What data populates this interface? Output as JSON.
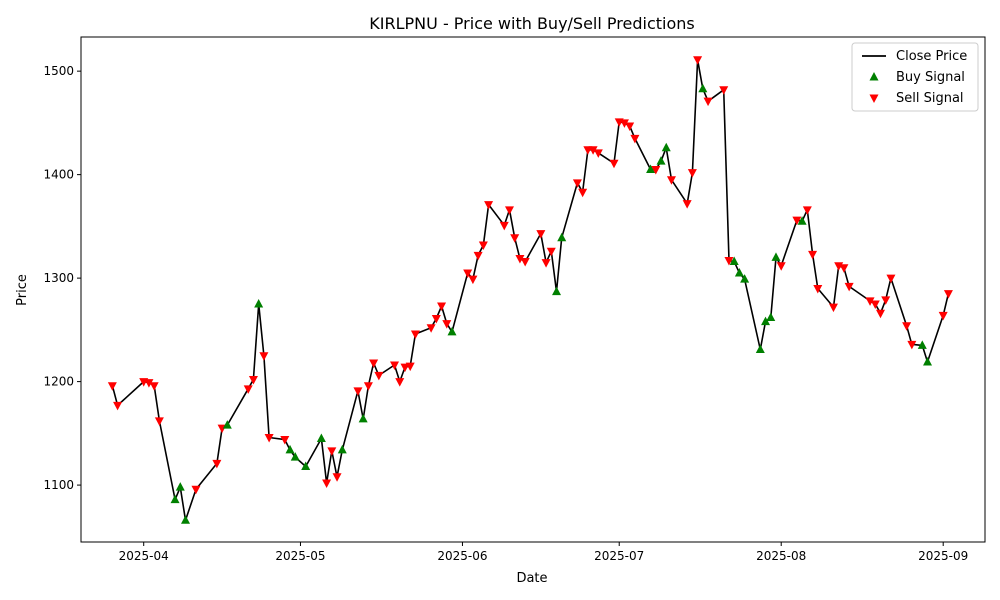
{
  "chart_data": {
    "type": "line",
    "title": "KIRLPNU - Price with Buy/Sell Predictions",
    "xlabel": "Date",
    "ylabel": "Price",
    "x_ticks": [
      "2025-04",
      "2025-05",
      "2025-06",
      "2025-07",
      "2025-08",
      "2025-09"
    ],
    "x_tick_dates": [
      "2025-04-01",
      "2025-05-01",
      "2025-06-01",
      "2025-07-01",
      "2025-08-01",
      "2025-09-01"
    ],
    "y_ticks": [
      1100,
      1200,
      1300,
      1400,
      1500
    ],
    "xlim": [
      "2025-03-20",
      "2025-09-09"
    ],
    "ylim": [
      1045,
      1533
    ],
    "grid": false,
    "legend": {
      "position": "top-right",
      "entries": [
        "Close Price",
        "Buy Signal",
        "Sell Signal"
      ]
    },
    "colors": {
      "line": "#000000",
      "buy": "#008000",
      "sell": "#ff0000"
    },
    "series": [
      {
        "name": "Close Price",
        "points": [
          {
            "x": "2025-03-26",
            "y": 1196,
            "s": "sell"
          },
          {
            "x": "2025-03-27",
            "y": 1177,
            "s": "sell"
          },
          {
            "x": "2025-04-01",
            "y": 1200,
            "s": "sell"
          },
          {
            "x": "2025-04-02",
            "y": 1199,
            "s": "sell"
          },
          {
            "x": "2025-04-03",
            "y": 1196,
            "s": "sell"
          },
          {
            "x": "2025-04-04",
            "y": 1162,
            "s": "sell"
          },
          {
            "x": "2025-04-07",
            "y": 1086,
            "s": "buy"
          },
          {
            "x": "2025-04-08",
            "y": 1098,
            "s": "buy"
          },
          {
            "x": "2025-04-09",
            "y": 1066,
            "s": "buy"
          },
          {
            "x": "2025-04-11",
            "y": 1096,
            "s": "sell"
          },
          {
            "x": "2025-04-15",
            "y": 1121,
            "s": "sell"
          },
          {
            "x": "2025-04-16",
            "y": 1155,
            "s": "sell"
          },
          {
            "x": "2025-04-17",
            "y": 1158,
            "s": "buy"
          },
          {
            "x": "2025-04-21",
            "y": 1193,
            "s": "sell"
          },
          {
            "x": "2025-04-22",
            "y": 1202,
            "s": "sell"
          },
          {
            "x": "2025-04-23",
            "y": 1275,
            "s": "buy"
          },
          {
            "x": "2025-04-24",
            "y": 1225,
            "s": "sell"
          },
          {
            "x": "2025-04-25",
            "y": 1146,
            "s": "sell"
          },
          {
            "x": "2025-04-28",
            "y": 1144,
            "s": "sell"
          },
          {
            "x": "2025-04-29",
            "y": 1134,
            "s": "buy"
          },
          {
            "x": "2025-04-30",
            "y": 1127,
            "s": "buy"
          },
          {
            "x": "2025-05-02",
            "y": 1118,
            "s": "buy"
          },
          {
            "x": "2025-05-05",
            "y": 1145,
            "s": "buy"
          },
          {
            "x": "2025-05-06",
            "y": 1102,
            "s": "sell"
          },
          {
            "x": "2025-05-07",
            "y": 1133,
            "s": "sell"
          },
          {
            "x": "2025-05-08",
            "y": 1108,
            "s": "sell"
          },
          {
            "x": "2025-05-09",
            "y": 1134,
            "s": "buy"
          },
          {
            "x": "2025-05-12",
            "y": 1191,
            "s": "sell"
          },
          {
            "x": "2025-05-13",
            "y": 1164,
            "s": "buy"
          },
          {
            "x": "2025-05-14",
            "y": 1196,
            "s": "sell"
          },
          {
            "x": "2025-05-15",
            "y": 1218,
            "s": "sell"
          },
          {
            "x": "2025-05-16",
            "y": 1206,
            "s": "sell"
          },
          {
            "x": "2025-05-19",
            "y": 1216,
            "s": "sell"
          },
          {
            "x": "2025-05-20",
            "y": 1200,
            "s": "sell"
          },
          {
            "x": "2025-05-21",
            "y": 1214,
            "s": "sell"
          },
          {
            "x": "2025-05-22",
            "y": 1215,
            "s": "sell"
          },
          {
            "x": "2025-05-23",
            "y": 1246,
            "s": "sell"
          },
          {
            "x": "2025-05-26",
            "y": 1252,
            "s": "sell"
          },
          {
            "x": "2025-05-27",
            "y": 1261,
            "s": "sell"
          },
          {
            "x": "2025-05-28",
            "y": 1273,
            "s": "sell"
          },
          {
            "x": "2025-05-29",
            "y": 1256,
            "s": "sell"
          },
          {
            "x": "2025-05-30",
            "y": 1248,
            "s": "buy"
          },
          {
            "x": "2025-06-02",
            "y": 1305,
            "s": "sell"
          },
          {
            "x": "2025-06-03",
            "y": 1299,
            "s": "sell"
          },
          {
            "x": "2025-06-04",
            "y": 1322,
            "s": "sell"
          },
          {
            "x": "2025-06-05",
            "y": 1332,
            "s": "sell"
          },
          {
            "x": "2025-06-06",
            "y": 1371,
            "s": "sell"
          },
          {
            "x": "2025-06-09",
            "y": 1351,
            "s": "sell"
          },
          {
            "x": "2025-06-10",
            "y": 1366,
            "s": "sell"
          },
          {
            "x": "2025-06-11",
            "y": 1339,
            "s": "sell"
          },
          {
            "x": "2025-06-12",
            "y": 1319,
            "s": "sell"
          },
          {
            "x": "2025-06-13",
            "y": 1316,
            "s": "sell"
          },
          {
            "x": "2025-06-16",
            "y": 1343,
            "s": "sell"
          },
          {
            "x": "2025-06-17",
            "y": 1315,
            "s": "sell"
          },
          {
            "x": "2025-06-18",
            "y": 1326,
            "s": "sell"
          },
          {
            "x": "2025-06-19",
            "y": 1287,
            "s": "buy"
          },
          {
            "x": "2025-06-20",
            "y": 1339,
            "s": "buy"
          },
          {
            "x": "2025-06-23",
            "y": 1392,
            "s": "sell"
          },
          {
            "x": "2025-06-24",
            "y": 1383,
            "s": "sell"
          },
          {
            "x": "2025-06-25",
            "y": 1424,
            "s": "sell"
          },
          {
            "x": "2025-06-26",
            "y": 1424,
            "s": "sell"
          },
          {
            "x": "2025-06-27",
            "y": 1421,
            "s": "sell"
          },
          {
            "x": "2025-06-30",
            "y": 1411,
            "s": "sell"
          },
          {
            "x": "2025-07-01",
            "y": 1451,
            "s": "sell"
          },
          {
            "x": "2025-07-02",
            "y": 1450,
            "s": "sell"
          },
          {
            "x": "2025-07-03",
            "y": 1447,
            "s": "sell"
          },
          {
            "x": "2025-07-04",
            "y": 1435,
            "s": "sell"
          },
          {
            "x": "2025-07-07",
            "y": 1405,
            "s": "buy"
          },
          {
            "x": "2025-07-08",
            "y": 1405,
            "s": "sell"
          },
          {
            "x": "2025-07-09",
            "y": 1413,
            "s": "buy"
          },
          {
            "x": "2025-07-10",
            "y": 1426,
            "s": "buy"
          },
          {
            "x": "2025-07-11",
            "y": 1395,
            "s": "sell"
          },
          {
            "x": "2025-07-14",
            "y": 1372,
            "s": "sell"
          },
          {
            "x": "2025-07-15",
            "y": 1402,
            "s": "sell"
          },
          {
            "x": "2025-07-16",
            "y": 1511,
            "s": "sell"
          },
          {
            "x": "2025-07-17",
            "y": 1483,
            "s": "buy"
          },
          {
            "x": "2025-07-18",
            "y": 1471,
            "s": "sell"
          },
          {
            "x": "2025-07-21",
            "y": 1482,
            "s": "sell"
          },
          {
            "x": "2025-07-22",
            "y": 1317,
            "s": "sell"
          },
          {
            "x": "2025-07-23",
            "y": 1316,
            "s": "buy"
          },
          {
            "x": "2025-07-24",
            "y": 1305,
            "s": "buy"
          },
          {
            "x": "2025-07-25",
            "y": 1299,
            "s": "buy"
          },
          {
            "x": "2025-07-28",
            "y": 1231,
            "s": "buy"
          },
          {
            "x": "2025-07-29",
            "y": 1258,
            "s": "buy"
          },
          {
            "x": "2025-07-30",
            "y": 1262,
            "s": "buy"
          },
          {
            "x": "2025-07-31",
            "y": 1320,
            "s": "buy"
          },
          {
            "x": "2025-08-01",
            "y": 1312,
            "s": "sell"
          },
          {
            "x": "2025-08-04",
            "y": 1356,
            "s": "sell"
          },
          {
            "x": "2025-08-05",
            "y": 1355,
            "s": "buy"
          },
          {
            "x": "2025-08-06",
            "y": 1366,
            "s": "sell"
          },
          {
            "x": "2025-08-07",
            "y": 1323,
            "s": "sell"
          },
          {
            "x": "2025-08-08",
            "y": 1290,
            "s": "sell"
          },
          {
            "x": "2025-08-11",
            "y": 1272,
            "s": "sell"
          },
          {
            "x": "2025-08-12",
            "y": 1312,
            "s": "sell"
          },
          {
            "x": "2025-08-13",
            "y": 1310,
            "s": "sell"
          },
          {
            "x": "2025-08-14",
            "y": 1292,
            "s": "sell"
          },
          {
            "x": "2025-08-18",
            "y": 1278,
            "s": "sell"
          },
          {
            "x": "2025-08-19",
            "y": 1275,
            "s": "sell"
          },
          {
            "x": "2025-08-20",
            "y": 1266,
            "s": "sell"
          },
          {
            "x": "2025-08-21",
            "y": 1279,
            "s": "sell"
          },
          {
            "x": "2025-08-22",
            "y": 1300,
            "s": "sell"
          },
          {
            "x": "2025-08-25",
            "y": 1254,
            "s": "sell"
          },
          {
            "x": "2025-08-26",
            "y": 1236,
            "s": "sell"
          },
          {
            "x": "2025-08-28",
            "y": 1235,
            "s": "buy"
          },
          {
            "x": "2025-08-29",
            "y": 1219,
            "s": "buy"
          },
          {
            "x": "2025-09-01",
            "y": 1264,
            "s": "sell"
          },
          {
            "x": "2025-09-02",
            "y": 1285,
            "s": "sell"
          }
        ]
      }
    ]
  }
}
